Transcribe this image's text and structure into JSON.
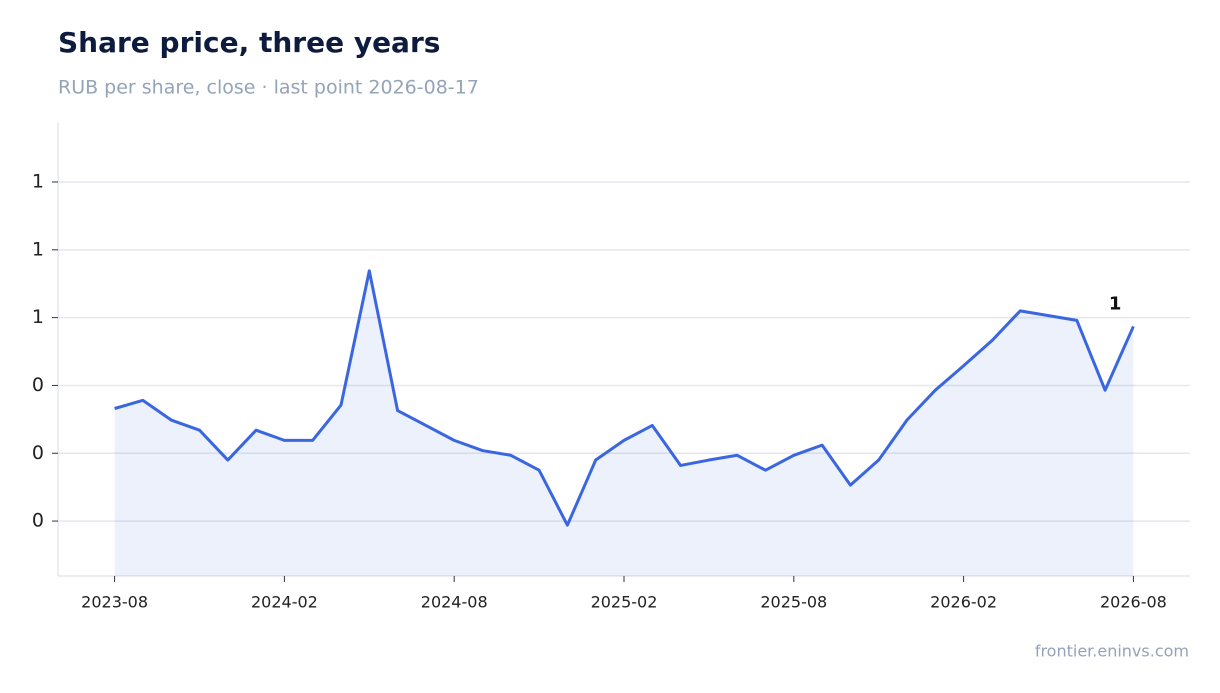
{
  "chart_data": {
    "type": "line",
    "title": "Share price, three years",
    "subtitle": "RUB per share, close · last point 2026-08-17",
    "source": "frontier.eninvs.com",
    "x": [
      "2023-08",
      "2023-09",
      "2023-10",
      "2023-11",
      "2023-12",
      "2024-01",
      "2024-02",
      "2024-03",
      "2024-04",
      "2024-05",
      "2024-06",
      "2024-07",
      "2024-08",
      "2024-09",
      "2024-10",
      "2024-11",
      "2024-12",
      "2025-01",
      "2025-02",
      "2025-03",
      "2025-04",
      "2025-05",
      "2025-06",
      "2025-07",
      "2025-08",
      "2025-09",
      "2025-10",
      "2025-11",
      "2025-12",
      "2026-01",
      "2026-02",
      "2026-03",
      "2026-04",
      "2026-05",
      "2026-06",
      "2026-07",
      "2026-08"
    ],
    "series": [
      {
        "color": "#3a66e0",
        "values": [
          0.466,
          0.478,
          0.449,
          0.434,
          0.39,
          0.434,
          0.419,
          0.419,
          0.471,
          0.669,
          0.463,
          0.441,
          0.419,
          0.404,
          0.397,
          0.375,
          0.294,
          0.39,
          0.419,
          0.441,
          0.382,
          0.39,
          0.397,
          0.375,
          0.397,
          0.412,
          0.353,
          0.39,
          0.449,
          0.493,
          0.529,
          0.566,
          0.61,
          0.603,
          0.596,
          0.493,
          0.587
        ],
        "value_labels": [
          null,
          null,
          null,
          null,
          null,
          null,
          null,
          null,
          null,
          null,
          null,
          null,
          null,
          null,
          null,
          null,
          null,
          null,
          null,
          null,
          null,
          null,
          null,
          null,
          null,
          null,
          null,
          null,
          null,
          null,
          null,
          null,
          null,
          null,
          null,
          null,
          "1"
        ]
      }
    ],
    "xlim": [
      "2023-06",
      "2026-10"
    ],
    "xticks": [
      "2023-08",
      "2024-02",
      "2024-08",
      "2025-02",
      "2025-08",
      "2026-02",
      "2026-08"
    ],
    "ylim": [
      0.219,
      0.887
    ],
    "yticks": [
      {
        "value": 0.3,
        "label": "0"
      },
      {
        "value": 0.4,
        "label": "0"
      },
      {
        "value": 0.5,
        "label": "0"
      },
      {
        "value": 0.6,
        "label": "1"
      },
      {
        "value": 0.7,
        "label": "1"
      },
      {
        "value": 0.8,
        "label": "1"
      }
    ],
    "grid": true
  }
}
